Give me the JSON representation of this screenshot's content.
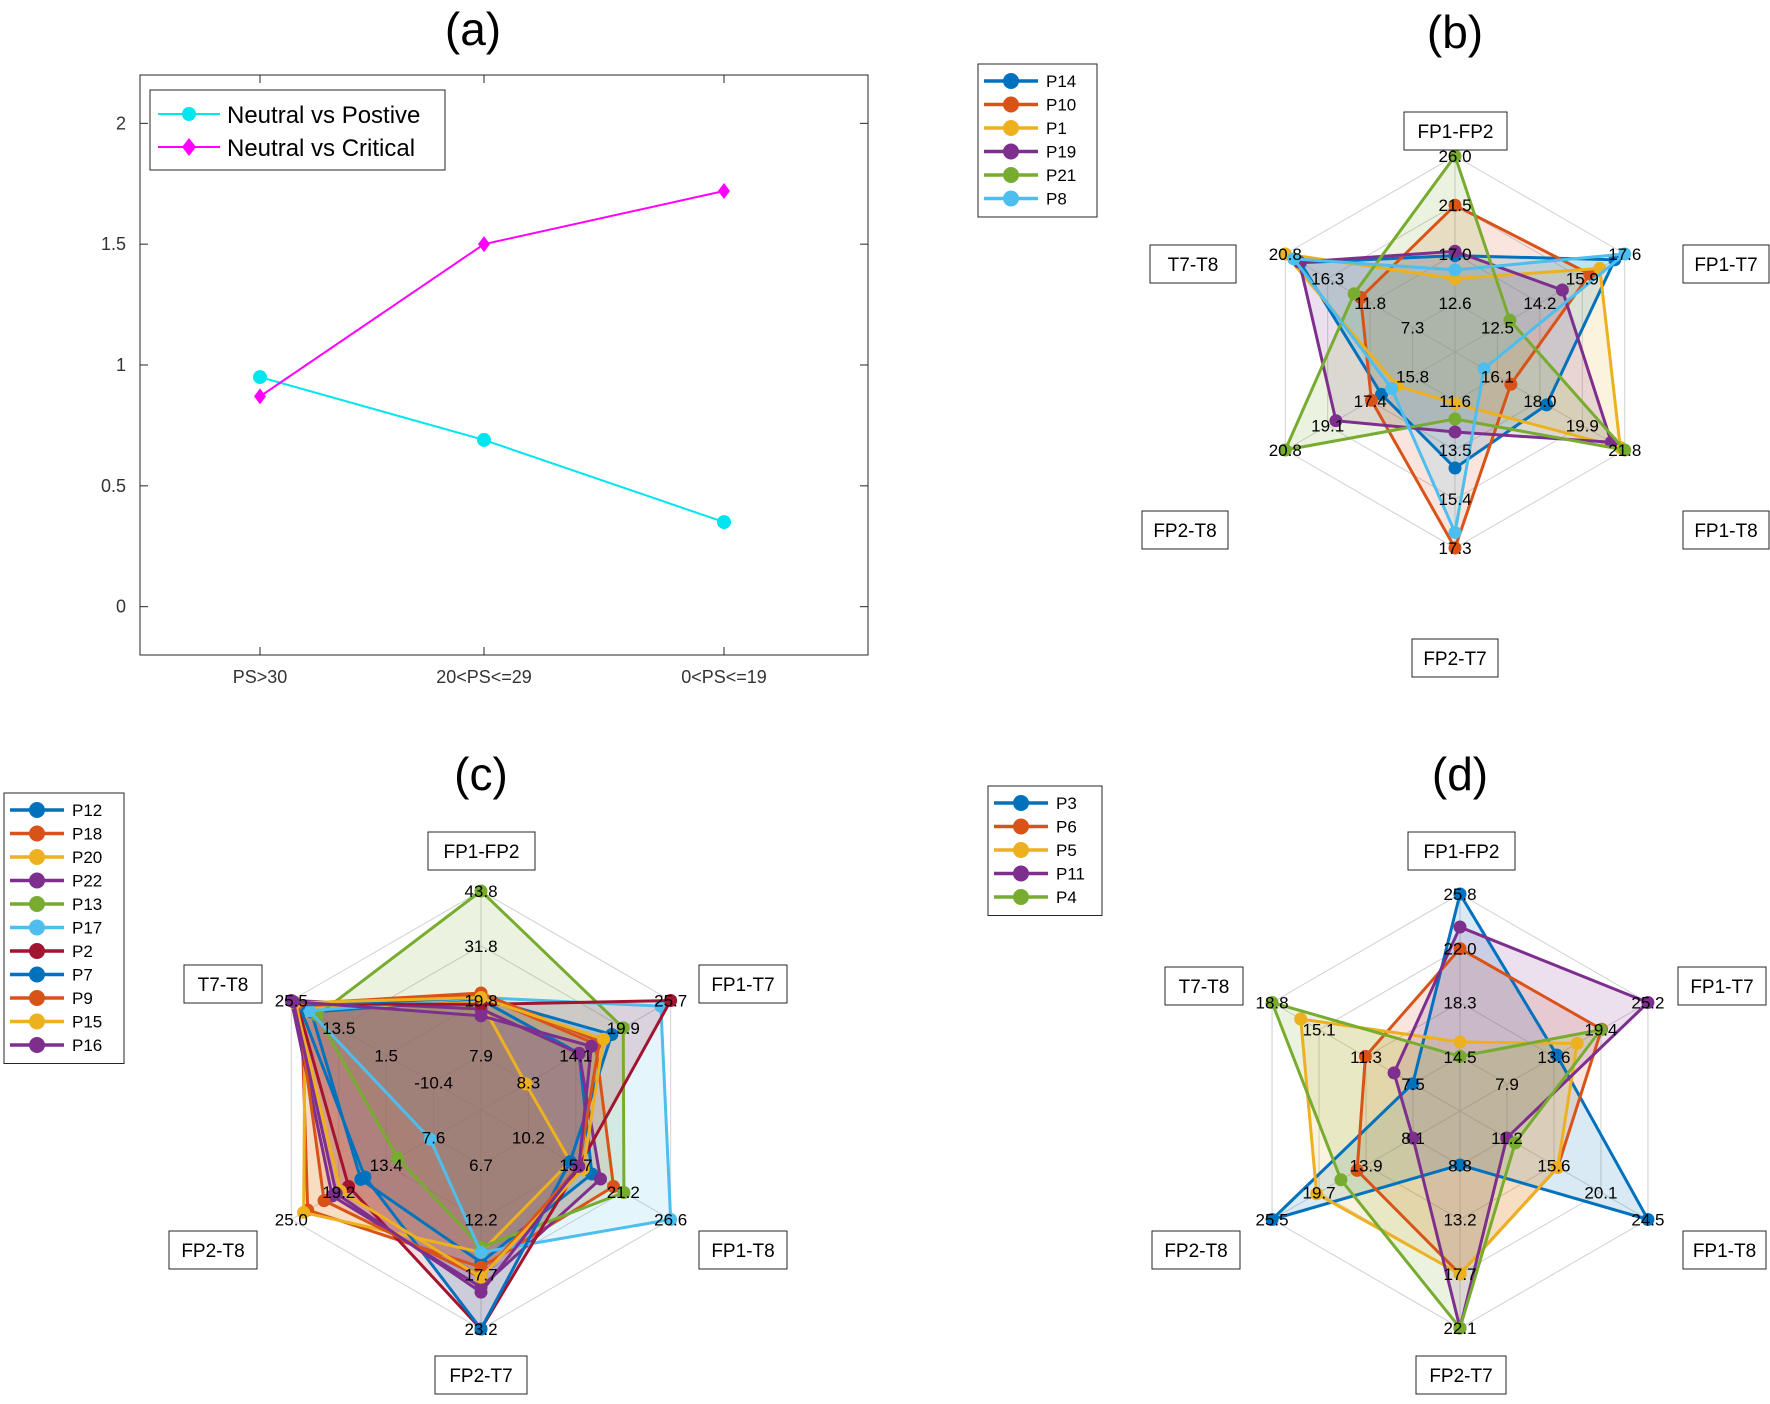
{
  "chart_data": [
    {
      "type": "line",
      "title": "(a)",
      "categories": [
        "PS>30",
        "20<PS<=29",
        "0<PS<=19"
      ],
      "ylim": [
        -0.2,
        2.2
      ],
      "yticks": [
        "0",
        "0.5",
        "1",
        "1.5",
        "2"
      ],
      "ytick_values": [
        0,
        0.5,
        1,
        1.5,
        2
      ],
      "xlabel": "",
      "ylabel": "",
      "legend_position": "top-left",
      "series": [
        {
          "name": "Neutral vs Postive",
          "color": "#00e5ee",
          "marker": "circle",
          "values": [
            0.95,
            0.69,
            0.35
          ]
        },
        {
          "name": "Neutral vs Critical",
          "color": "#ff00ff",
          "marker": "diamond",
          "values": [
            0.87,
            1.5,
            1.72
          ]
        }
      ]
    },
    {
      "type": "radar",
      "title": "(b)",
      "axes": [
        "FP1-FP2",
        "FP1-T7",
        "FP1-T8",
        "FP2-T7",
        "FP2-T8",
        "T7-T8"
      ],
      "axis_ticks": [
        [
          "12.6",
          "17.0",
          "21.5",
          "26.0"
        ],
        [
          "12.5",
          "14.2",
          "15.9",
          "17.6"
        ],
        [
          "16.1",
          "18.0",
          "19.9",
          "21.8"
        ],
        [
          "11.6",
          "13.5",
          "15.4",
          "17.3"
        ],
        [
          "15.8",
          "17.4",
          "19.1",
          "20.8"
        ],
        [
          "7.3",
          "11.8",
          "16.3",
          "20.8"
        ]
      ],
      "axis_ranges": [
        [
          8.1,
          26.0
        ],
        [
          10.8,
          17.6
        ],
        [
          14.2,
          21.8
        ],
        [
          9.7,
          17.3
        ],
        [
          14.1,
          20.8
        ],
        [
          2.8,
          20.8
        ]
      ],
      "legend_position": "top-left",
      "series": [
        {
          "name": "P14",
          "color": "#0072bd",
          "values": [
            16.9,
            17.2,
            18.3,
            14.2,
            17.0,
            19.2
          ]
        },
        {
          "name": "P10",
          "color": "#d95319",
          "values": [
            21.5,
            16.2,
            16.7,
            17.3,
            17.4,
            12.8
          ]
        },
        {
          "name": "P1",
          "color": "#edb120",
          "values": [
            14.8,
            16.6,
            21.6,
            11.7,
            16.4,
            20.8
          ]
        },
        {
          "name": "P19",
          "color": "#7e2f8e",
          "values": [
            17.3,
            15.1,
            21.2,
            12.8,
            18.8,
            19.3
          ]
        },
        {
          "name": "P21",
          "color": "#77ac30",
          "values": [
            26.0,
            13.0,
            21.8,
            12.3,
            20.8,
            13.5
          ]
        },
        {
          "name": "P8",
          "color": "#4dbeee",
          "values": [
            15.6,
            17.6,
            15.5,
            16.7,
            16.6,
            19.9
          ]
        }
      ]
    },
    {
      "type": "radar",
      "title": "(c)",
      "axes": [
        "FP1-FP2",
        "FP1-T7",
        "FP1-T8",
        "FP2-T7",
        "FP2-T8",
        "T7-T8"
      ],
      "axis_ticks": [
        [
          "7.9",
          "19.8",
          "31.8",
          "43.8"
        ],
        [
          "8.3",
          "14.1",
          "19.9",
          "25.7"
        ],
        [
          "10.2",
          "15.7",
          "21.2",
          "26.6"
        ],
        [
          "6.7",
          "12.2",
          "17.7",
          "23.2"
        ],
        [
          "7.6",
          "13.4",
          "19.2",
          "25.0"
        ],
        [
          "-10.4",
          "1.5",
          "13.5",
          "25.5"
        ]
      ],
      "axis_ranges": [
        [
          -4.1,
          43.8
        ],
        [
          2.5,
          25.7
        ],
        [
          4.7,
          26.6
        ],
        [
          1.2,
          23.2
        ],
        [
          1.8,
          25.0
        ],
        [
          -22.3,
          25.5
        ]
      ],
      "legend_position": "top-left",
      "series": [
        {
          "name": "P12",
          "color": "#0072bd",
          "values": [
            20.0,
            14.5,
            17.5,
            16.5,
            16.5,
            20.5
          ]
        },
        {
          "name": "P18",
          "color": "#d95319",
          "values": [
            21.0,
            16.5,
            20.0,
            17.0,
            23.0,
            23.0
          ]
        },
        {
          "name": "P20",
          "color": "#edb120",
          "values": [
            19.5,
            8.0,
            15.0,
            15.5,
            23.5,
            22.0
          ]
        },
        {
          "name": "P22",
          "color": "#7e2f8e",
          "values": [
            18.0,
            14.5,
            18.5,
            19.0,
            20.0,
            25.5
          ]
        },
        {
          "name": "P13",
          "color": "#77ac30",
          "values": [
            43.8,
            19.9,
            21.2,
            15.0,
            12.0,
            19.0
          ]
        },
        {
          "name": "P17",
          "color": "#4dbeee",
          "values": [
            20.5,
            24.5,
            26.6,
            15.5,
            8.0,
            21.0
          ]
        },
        {
          "name": "P2",
          "color": "#a2142f",
          "values": [
            19.0,
            25.7,
            16.0,
            23.2,
            18.0,
            24.0
          ]
        },
        {
          "name": "P7",
          "color": "#0072bd",
          "values": [
            20.5,
            18.5,
            15.0,
            23.2,
            16.0,
            23.5
          ]
        },
        {
          "name": "P9",
          "color": "#d95319",
          "values": [
            21.5,
            17.0,
            16.0,
            18.0,
            21.0,
            24.0
          ]
        },
        {
          "name": "P15",
          "color": "#edb120",
          "values": [
            20.5,
            17.5,
            16.5,
            18.0,
            19.0,
            24.5
          ]
        },
        {
          "name": "P16",
          "color": "#7e2f8e",
          "values": [
            16.5,
            16.0,
            16.0,
            19.5,
            19.5,
            25.0
          ]
        }
      ]
    },
    {
      "type": "radar",
      "title": "(d)",
      "axes": [
        "FP1-FP2",
        "FP1-T7",
        "FP1-T8",
        "FP2-T7",
        "FP2-T8",
        "T7-T8"
      ],
      "axis_ticks": [
        [
          "14.5",
          "18.3",
          "22.0",
          "25.8"
        ],
        [
          "7.9",
          "13.6",
          "19.4",
          "25.2"
        ],
        [
          "11.2",
          "15.6",
          "20.1",
          "24.5"
        ],
        [
          "8.8",
          "13.2",
          "17.7",
          "22.1"
        ],
        [
          "8.1",
          "13.9",
          "19.7",
          "25.5"
        ],
        [
          "7.5",
          "11.3",
          "15.1",
          "18.8"
        ]
      ],
      "axis_ranges": [
        [
          10.7,
          25.8
        ],
        [
          2.1,
          25.2
        ],
        [
          6.8,
          24.5
        ],
        [
          4.4,
          22.1
        ],
        [
          2.3,
          25.5
        ],
        [
          3.7,
          18.8
        ]
      ],
      "legend_position": "top-left",
      "series": [
        {
          "name": "P3",
          "color": "#0072bd",
          "values": [
            25.8,
            14.0,
            24.5,
            8.8,
            25.5,
            7.5
          ]
        },
        {
          "name": "P6",
          "color": "#d95319",
          "values": [
            22.0,
            19.5,
            16.0,
            17.7,
            15.0,
            11.3
          ]
        },
        {
          "name": "P5",
          "color": "#edb120",
          "values": [
            15.5,
            16.5,
            16.0,
            17.7,
            20.0,
            16.5
          ]
        },
        {
          "name": "P11",
          "color": "#7e2f8e",
          "values": [
            23.5,
            25.2,
            11.2,
            22.1,
            8.1,
            9.0
          ]
        },
        {
          "name": "P4",
          "color": "#77ac30",
          "values": [
            14.5,
            19.4,
            12.0,
            22.1,
            17.0,
            18.8
          ]
        }
      ]
    }
  ]
}
